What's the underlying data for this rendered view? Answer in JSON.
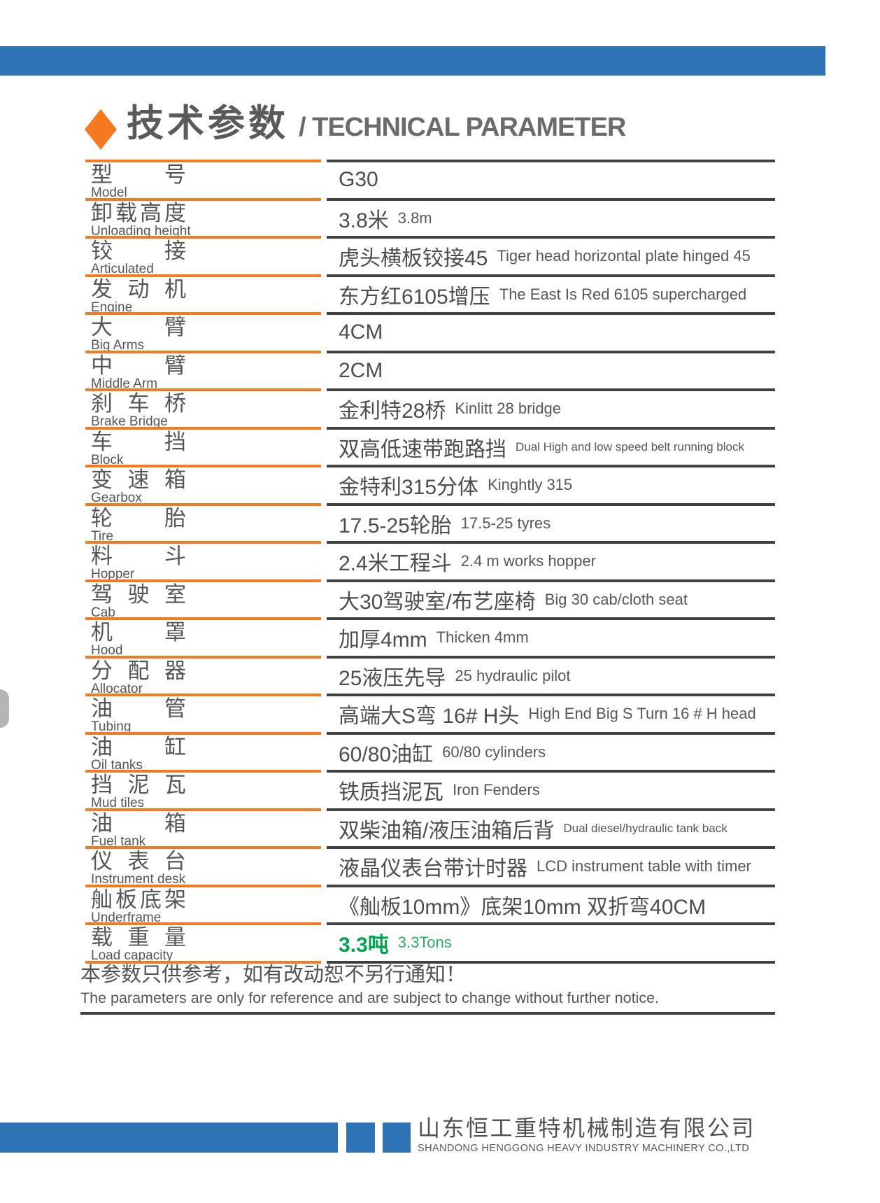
{
  "page_title": {
    "zh": "技术参数",
    "en": "/ TECHNICAL PARAMETER"
  },
  "table": {
    "rows": [
      {
        "label_zh": "型 号",
        "label_en": "Model",
        "value_zh": "G30",
        "value_en": ""
      },
      {
        "label_zh": "卸载高度",
        "label_en": "Unloading height",
        "value_zh": "3.8米",
        "value_en": "3.8m"
      },
      {
        "label_zh": "铰 接",
        "label_en": "Articulated",
        "value_zh": "虎头横板铰接45",
        "value_en": "Tiger head horizontal plate hinged 45"
      },
      {
        "label_zh": "发 动 机",
        "label_en": "Engine",
        "value_zh": "东方红6105增压",
        "value_en": "The East Is Red 6105 supercharged"
      },
      {
        "label_zh": "大 臂",
        "label_en": "Big Arms",
        "value_zh": "4CM",
        "value_en": ""
      },
      {
        "label_zh": "中 臂",
        "label_en": "Middle Arm",
        "value_zh": "2CM",
        "value_en": ""
      },
      {
        "label_zh": "刹 车 桥",
        "label_en": "Brake Bridge",
        "value_zh": "金利特28桥",
        "value_en": "Kinlitt 28 bridge"
      },
      {
        "label_zh": "车 挡",
        "label_en": "Block",
        "value_zh": "双高低速带跑路挡",
        "value_en": "Dual High and low speed belt running block"
      },
      {
        "label_zh": "变 速 箱",
        "label_en": "Gearbox",
        "value_zh": "金特利315分体",
        "value_en": "Kinghtly 315"
      },
      {
        "label_zh": "轮 胎",
        "label_en": "Tire",
        "value_zh": "17.5-25轮胎",
        "value_en": "17.5-25 tyres"
      },
      {
        "label_zh": "料 斗",
        "label_en": "Hopper",
        "value_zh": "2.4米工程斗",
        "value_en": "2.4 m works hopper"
      },
      {
        "label_zh": "驾 驶 室",
        "label_en": "Cab",
        "value_zh": "大30驾驶室/布艺座椅",
        "value_en": "Big 30 cab/cloth seat"
      },
      {
        "label_zh": "机 罩",
        "label_en": "Hood",
        "value_zh": "加厚4mm",
        "value_en": "Thicken 4mm"
      },
      {
        "label_zh": "分 配 器",
        "label_en": "Allocator",
        "value_zh": "25液压先导",
        "value_en": "25 hydraulic pilot"
      },
      {
        "label_zh": "油 管",
        "label_en": "Tubing",
        "value_zh": "高端大S弯 16# H头",
        "value_en": "High End Big S Turn 16 # H head"
      },
      {
        "label_zh": "油 缸",
        "label_en": "Oil tanks",
        "value_zh": "60/80油缸",
        "value_en": "60/80 cylinders"
      },
      {
        "label_zh": "挡 泥 瓦",
        "label_en": "Mud tiles",
        "value_zh": "铁质挡泥瓦",
        "value_en": "Iron Fenders"
      },
      {
        "label_zh": "油 箱",
        "label_en": "Fuel tank",
        "value_zh": "双柴油箱/液压油箱后背",
        "value_en": "Dual diesel/hydraulic tank back"
      },
      {
        "label_zh": "仪 表 台",
        "label_en": "Instrument desk",
        "value_zh": "液晶仪表台带计时器",
        "value_en": "LCD instrument table with timer"
      },
      {
        "label_zh": "舢板底架",
        "label_en": "Underframe",
        "value_zh": "《舢板10mm》底架10mm 双折弯40CM",
        "value_en": ""
      },
      {
        "label_zh": "载 重 量",
        "label_en": "Load capacity",
        "value_zh": "3.3吨",
        "value_en": "3.3Tons",
        "value_color": "green"
      }
    ]
  },
  "disclaimer": {
    "zh": "本参数只供参考，如有改动恕不另行通知！",
    "en": "The parameters are only for reference and are subject to change without further notice."
  },
  "footer": {
    "company_zh": "山东恒工重特机械制造有限公司",
    "company_en": "SHANDONG HENGGONG HEAVY INDUSTRY MACHINERY CO.,LTD"
  },
  "colors": {
    "accent_blue": "#2E73B6",
    "accent_orange": "#F4791F",
    "line_dark": "#3F4143",
    "text_gray": "#55565A",
    "value_green": "#00A44F"
  }
}
